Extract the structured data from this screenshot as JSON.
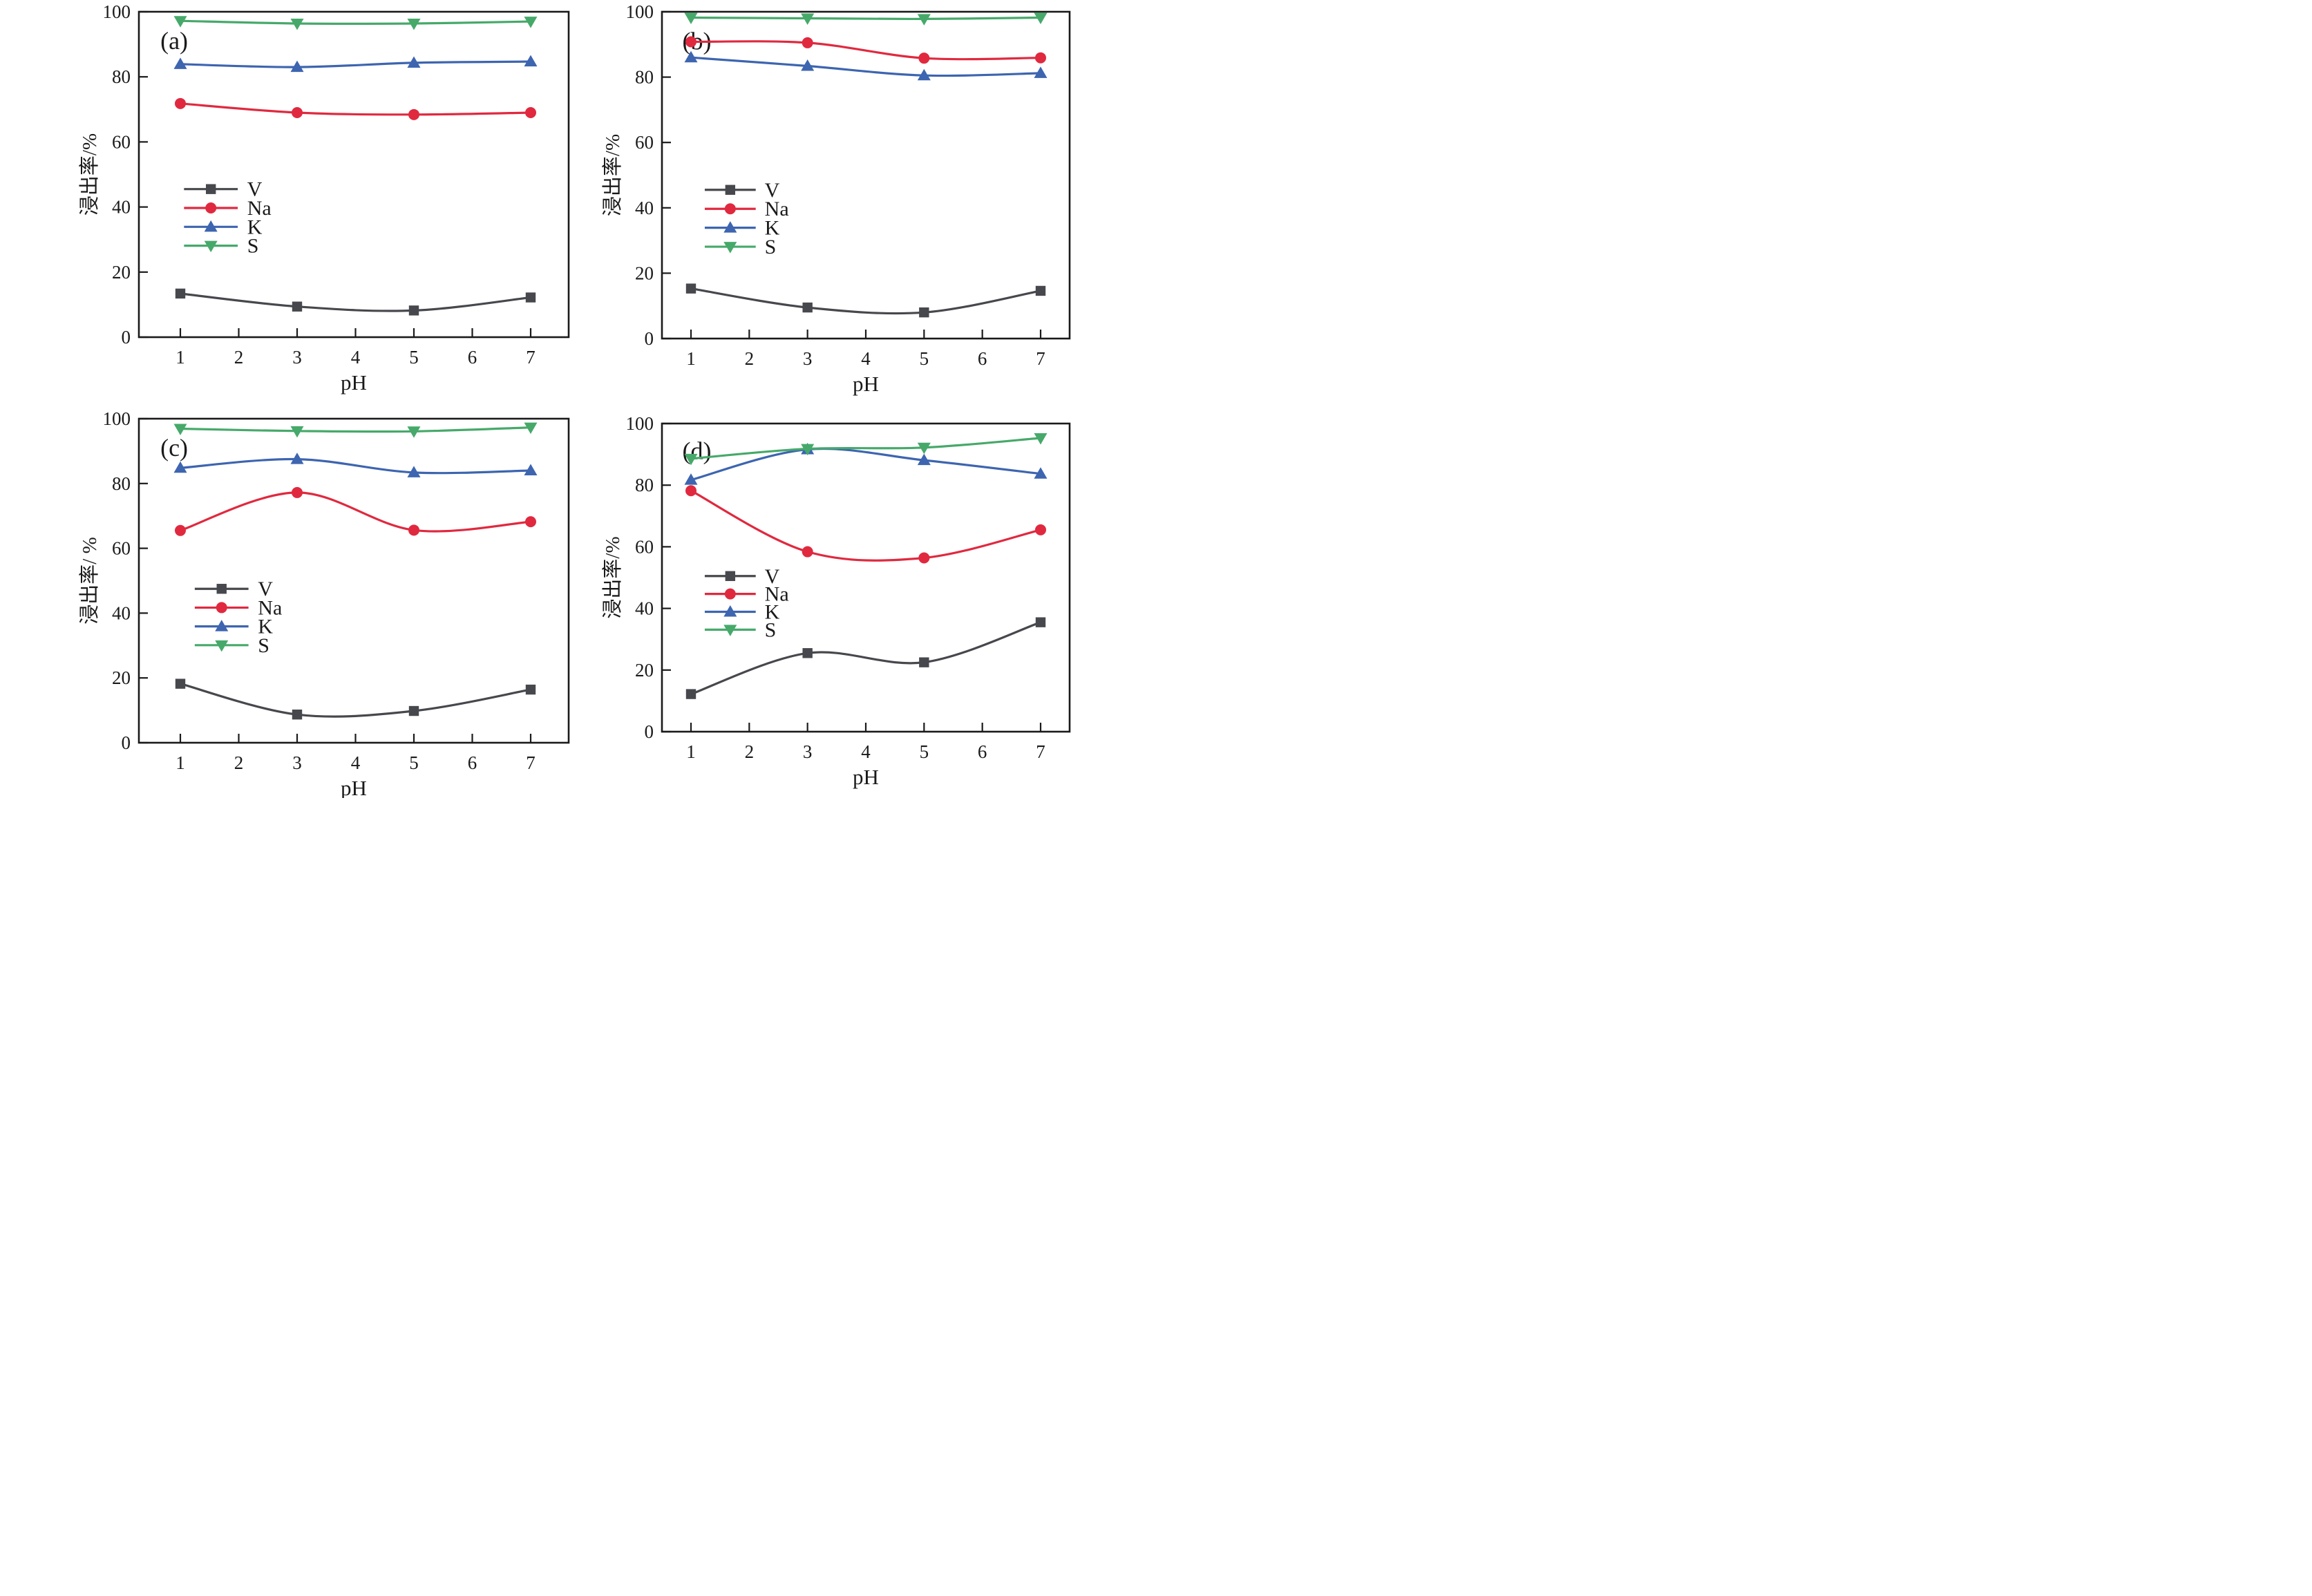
{
  "figure": {
    "background": "#ffffff",
    "axis_color": "#1a1a1a"
  },
  "chart_data": [
    {
      "type": "line",
      "panel_label": "(a)",
      "xlabel": "pH",
      "ylabel": "浸出率/%",
      "x": [
        1,
        3,
        5,
        7
      ],
      "xticks": [
        1,
        2,
        3,
        4,
        5,
        6,
        7
      ],
      "yticks": [
        0,
        20,
        40,
        60,
        80,
        100
      ],
      "ylim": [
        0,
        100
      ],
      "grid": false,
      "legend_position": "center-left",
      "series": [
        {
          "name": "V",
          "marker": "square",
          "color": "#47484d",
          "values": [
            13.4,
            9.4,
            8.2,
            12.2
          ]
        },
        {
          "name": "Na",
          "marker": "circle",
          "color": "#e0293f",
          "values": [
            71.8,
            69.0,
            68.4,
            69.0
          ]
        },
        {
          "name": "K",
          "marker": "triangle-up",
          "color": "#3d65b0",
          "values": [
            83.9,
            83.0,
            84.3,
            84.7
          ]
        },
        {
          "name": "S",
          "marker": "triangle-down",
          "color": "#46a96a",
          "values": [
            97.2,
            96.4,
            96.4,
            97.0
          ]
        }
      ]
    },
    {
      "type": "line",
      "panel_label": "(b)",
      "xlabel": "pH",
      "ylabel": "浸出率/%",
      "x": [
        1,
        3,
        5,
        7
      ],
      "xticks": [
        1,
        2,
        3,
        4,
        5,
        6,
        7
      ],
      "yticks": [
        0,
        20,
        40,
        60,
        80,
        100
      ],
      "ylim": [
        0,
        100
      ],
      "grid": false,
      "legend_position": "center-left",
      "series": [
        {
          "name": "V",
          "marker": "square",
          "color": "#47484d",
          "values": [
            15.3,
            9.5,
            8.0,
            14.6
          ]
        },
        {
          "name": "Na",
          "marker": "circle",
          "color": "#e0293f",
          "values": [
            90.8,
            90.5,
            85.8,
            85.9
          ]
        },
        {
          "name": "K",
          "marker": "triangle-up",
          "color": "#3d65b0",
          "values": [
            86.0,
            83.4,
            80.5,
            81.2
          ]
        },
        {
          "name": "S",
          "marker": "triangle-down",
          "color": "#46a96a",
          "values": [
            98.2,
            98.0,
            97.8,
            98.2
          ]
        }
      ]
    },
    {
      "type": "line",
      "panel_label": "(c)",
      "xlabel": "pH",
      "ylabel": "浸出率/ %",
      "x": [
        1,
        3,
        5,
        7
      ],
      "xticks": [
        1,
        2,
        3,
        4,
        5,
        6,
        7
      ],
      "yticks": [
        0,
        20,
        40,
        60,
        80,
        100
      ],
      "ylim": [
        0,
        100
      ],
      "grid": false,
      "legend_position": "center-left",
      "series": [
        {
          "name": "V",
          "marker": "square",
          "color": "#47484d",
          "values": [
            18.2,
            8.7,
            9.8,
            16.4
          ]
        },
        {
          "name": "Na",
          "marker": "circle",
          "color": "#e0293f",
          "values": [
            65.5,
            77.2,
            65.6,
            68.2
          ]
        },
        {
          "name": "K",
          "marker": "triangle-up",
          "color": "#3d65b0",
          "values": [
            84.8,
            87.5,
            83.4,
            84.0
          ]
        },
        {
          "name": "S",
          "marker": "triangle-down",
          "color": "#46a96a",
          "values": [
            96.9,
            96.2,
            96.1,
            97.3
          ]
        }
      ]
    },
    {
      "type": "line",
      "panel_label": "(d)",
      "xlabel": "pH",
      "ylabel": "浸出率/%",
      "x": [
        1,
        3,
        5,
        7
      ],
      "xticks": [
        1,
        2,
        3,
        4,
        5,
        6,
        7
      ],
      "yticks": [
        0,
        20,
        40,
        60,
        80,
        100
      ],
      "ylim": [
        0,
        100
      ],
      "grid": false,
      "legend_position": "center-left",
      "series": [
        {
          "name": "V",
          "marker": "square",
          "color": "#47484d",
          "values": [
            12.2,
            25.5,
            22.5,
            35.5
          ]
        },
        {
          "name": "Na",
          "marker": "circle",
          "color": "#e0293f",
          "values": [
            78.2,
            58.4,
            56.4,
            65.5
          ]
        },
        {
          "name": "K",
          "marker": "triangle-up",
          "color": "#3d65b0",
          "values": [
            81.7,
            91.6,
            88.1,
            83.7
          ]
        },
        {
          "name": "S",
          "marker": "triangle-down",
          "color": "#46a96a",
          "values": [
            88.6,
            91.8,
            92.2,
            95.3
          ]
        }
      ]
    }
  ]
}
